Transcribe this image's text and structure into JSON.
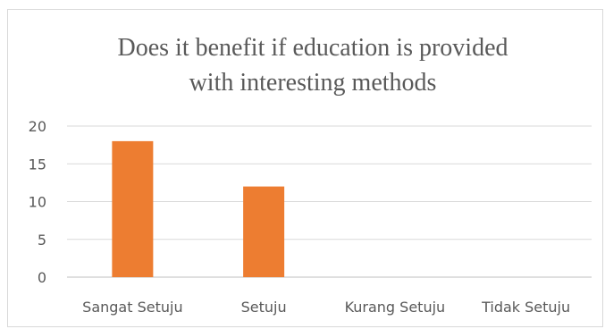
{
  "chart_data": {
    "type": "bar",
    "title_lines": [
      "Does it benefit if education is provided",
      "with interesting methods"
    ],
    "categories": [
      "Sangat Setuju",
      "Setuju",
      "Kurang Setuju",
      "Tidak Setuju"
    ],
    "values": [
      18,
      12,
      0,
      0
    ],
    "yticks": [
      0,
      5,
      10,
      15,
      20
    ],
    "ylim": [
      0,
      20
    ],
    "xlabel": "",
    "ylabel": "",
    "grid": true,
    "legend": "none",
    "bar_color": "#ED7D31"
  }
}
